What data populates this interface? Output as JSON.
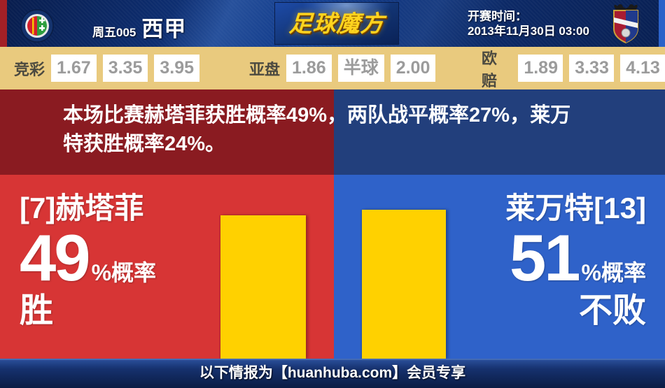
{
  "header": {
    "match_tag": "周五005",
    "league": "西甲",
    "logo_text": "足球魔方",
    "kickoff_label": "开赛时间：",
    "kickoff_time": "2013年11月30日 03:00",
    "home_badge": "getafe-crest",
    "away_badge": "levante-crest"
  },
  "odds": {
    "jingcai": {
      "label": "竞彩",
      "values": [
        "1.67",
        "3.35",
        "3.95"
      ]
    },
    "yapan": {
      "label": "亚盘",
      "values": [
        "1.86",
        "半球",
        "2.00"
      ]
    },
    "oupei": {
      "label": "欧赔",
      "values": [
        "1.89",
        "3.33",
        "4.13"
      ]
    }
  },
  "summary": {
    "line1": "本场比赛赫塔菲获胜概率49%，两队战平概率27%，莱万",
    "line2": "特获胜概率24%。"
  },
  "matchup": {
    "home": {
      "name": "[7]赫塔菲",
      "percent": "49",
      "percent_suffix": "%概率",
      "outcome": "胜"
    },
    "away": {
      "name": "莱万特[13]",
      "percent": "51",
      "percent_suffix": "%概率",
      "outcome": "不败"
    }
  },
  "chart_data": {
    "type": "bar",
    "categories": [
      "[7]赫塔菲 胜",
      "莱万特[13] 不败"
    ],
    "values": [
      49,
      51
    ],
    "unit": "%",
    "bar_color": "#ffd100",
    "probabilities": {
      "home_win": 49,
      "draw": 27,
      "away_win": 24
    }
  },
  "footer": {
    "text": "以下情报为【huanhuba.com】会员专享"
  },
  "colors": {
    "header_navy": "#0d2d6f",
    "odds_bg": "#e9ca7e",
    "stripe_red": "#8a1b21",
    "stripe_blue": "#223f7c",
    "main_red": "#d73535",
    "main_blue": "#2f62c9",
    "bar_yellow": "#ffd100",
    "logo_gold": "#ffd41e",
    "edge_red": "#a32026",
    "edge_blue": "#2b62c9"
  }
}
